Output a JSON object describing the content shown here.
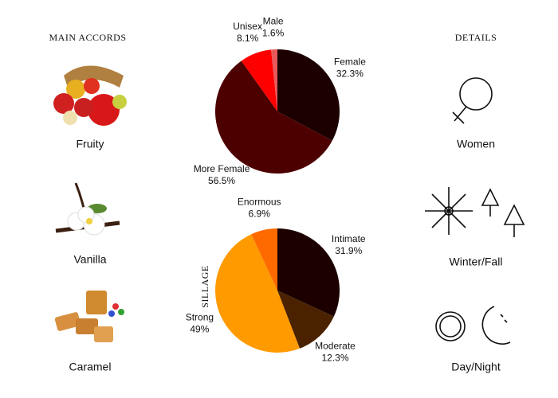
{
  "main_accords": {
    "title": "MAIN ACCORDS",
    "items": [
      "Fruity",
      "Vanilla",
      "Caramel"
    ]
  },
  "details": {
    "title": "DETAILS",
    "items": [
      "Women",
      "Winter/Fall",
      "Day/Night"
    ]
  },
  "chart_data": [
    {
      "type": "pie",
      "categories": [
        "Female",
        "More Female",
        "Unisex",
        "Male"
      ],
      "values": [
        32.3,
        56.5,
        8.1,
        1.6
      ],
      "value_labels": [
        "32.3%",
        "56.5%",
        "8.1%",
        "1.6%"
      ],
      "colors": [
        "#1c0000",
        "#4d0000",
        "#ff0000",
        "#e8585a"
      ]
    },
    {
      "type": "pie",
      "title": "SILLAGE",
      "categories": [
        "Intimate",
        "Moderate",
        "Strong",
        "Enormous"
      ],
      "values": [
        31.9,
        12.3,
        49,
        6.9
      ],
      "value_labels": [
        "31.9%",
        "12.3%",
        "49%",
        "6.9%"
      ],
      "colors": [
        "#1c0000",
        "#4a2200",
        "#ff9a00",
        "#ff6a00"
      ]
    }
  ]
}
